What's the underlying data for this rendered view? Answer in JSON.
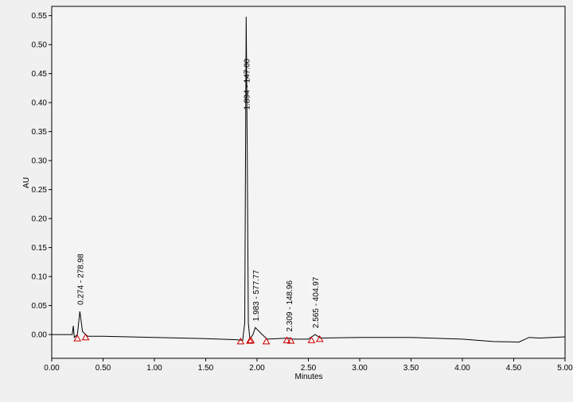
{
  "chart_data": {
    "type": "line",
    "xlabel": "Minutes",
    "ylabel": "AU",
    "xlim": [
      0,
      5
    ],
    "ylim": [
      -0.041,
      0.566
    ],
    "xticks": [
      {
        "value": 0,
        "label": "0.00"
      },
      {
        "value": 0.5,
        "label": "0.50"
      },
      {
        "value": 1,
        "label": "1.00"
      },
      {
        "value": 1.5,
        "label": "1.50"
      },
      {
        "value": 2,
        "label": "2.00"
      },
      {
        "value": 2.5,
        "label": "2.50"
      },
      {
        "value": 3,
        "label": "3.00"
      },
      {
        "value": 3.5,
        "label": "3.50"
      },
      {
        "value": 4,
        "label": "4.00"
      },
      {
        "value": 4.5,
        "label": "4.50"
      },
      {
        "value": 5,
        "label": "5.00"
      }
    ],
    "yticks": [
      {
        "value": 0,
        "label": "0.00"
      },
      {
        "value": 0.05,
        "label": "0.05"
      },
      {
        "value": 0.1,
        "label": "0.10"
      },
      {
        "value": 0.15,
        "label": "0.15"
      },
      {
        "value": 0.2,
        "label": "0.20"
      },
      {
        "value": 0.25,
        "label": "0.25"
      },
      {
        "value": 0.3,
        "label": "0.30"
      },
      {
        "value": 0.35,
        "label": "0.35"
      },
      {
        "value": 0.4,
        "label": "0.40"
      },
      {
        "value": 0.45,
        "label": "0.45"
      },
      {
        "value": 0.5,
        "label": "0.50"
      },
      {
        "value": 0.55,
        "label": "0.55"
      }
    ],
    "x": [
      0,
      0.2,
      0.21,
      0.22,
      0.25,
      0.274,
      0.3,
      0.35,
      0.5,
      1.0,
      1.5,
      1.8,
      1.86,
      1.88,
      1.894,
      1.905,
      1.915,
      1.93,
      1.96,
      1.983,
      2.05,
      2.1,
      2.309,
      2.35,
      2.5,
      2.565,
      2.62,
      3.0,
      3.5,
      4.0,
      4.3,
      4.55,
      4.65,
      4.75,
      5.0
    ],
    "values": [
      0,
      0,
      0.015,
      -0.005,
      0,
      0.04,
      0.005,
      -0.003,
      -0.003,
      -0.005,
      -0.007,
      -0.009,
      -0.01,
      0.02,
      0.548,
      0.3,
      0.02,
      -0.008,
      0,
      0.012,
      0,
      -0.008,
      -0.006,
      -0.008,
      -0.008,
      0,
      -0.006,
      -0.005,
      -0.005,
      -0.008,
      -0.012,
      -0.013,
      -0.005,
      -0.006,
      -0.004
    ],
    "color": "#000000",
    "markers": {
      "color": "#cc0000",
      "x": [
        0.25,
        0.33,
        1.84,
        1.93,
        1.94,
        2.09,
        2.29,
        2.33,
        2.53,
        2.61
      ],
      "values": [
        -0.007,
        -0.005,
        -0.012,
        -0.011,
        -0.01,
        -0.012,
        -0.01,
        -0.011,
        -0.01,
        -0.008
      ]
    },
    "annotations": [
      {
        "x": 0.274,
        "text": "0.274 - 278.98"
      },
      {
        "x": 1.894,
        "text": "1.894 - 147.00"
      },
      {
        "x": 1.983,
        "text": "1.983 - 577.77"
      },
      {
        "x": 2.309,
        "text": "2.309 - 148.96"
      },
      {
        "x": 2.565,
        "text": "2.565 - 404.97"
      }
    ]
  }
}
